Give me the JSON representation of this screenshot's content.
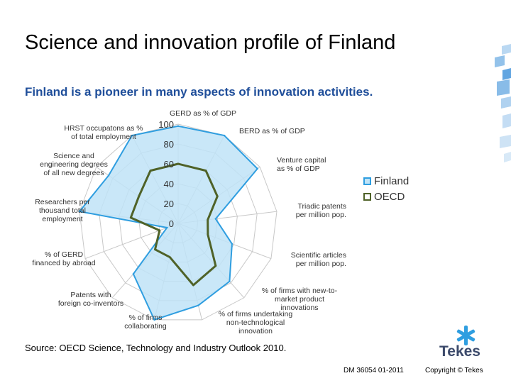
{
  "slide": {
    "title": "Science and innovation profile of Finland",
    "subtitle": "Finland is a pioneer in many aspects of innovation activities.",
    "source": "Source: OECD Science, Technology and Industry Outlook 2010.",
    "doc_number": "DM 36054 01-2011",
    "copyright": "Copyright © Tekes",
    "logo_text": "Tekes"
  },
  "colors": {
    "finland_fill": "#bfe3f7",
    "finland_line": "#2f9ee0",
    "oecd_line": "#4f6228",
    "title_blue": "#1f4e9a",
    "grid": "#c8c8c8",
    "deco_blue": "#3a8fd9"
  },
  "chart_data": {
    "type": "radar",
    "title": "",
    "rlim": [
      0,
      100
    ],
    "tick_values": [
      0,
      20,
      40,
      60,
      80,
      100
    ],
    "tick_labels": [
      "0",
      "20",
      "40",
      "60",
      "80",
      "100"
    ],
    "grid": true,
    "legend_position": "right",
    "axes": [
      "GERD as % of GDP",
      "BERD as % of GDP",
      "Venture capital as % of GDP",
      "Triadic patents per million pop.",
      "Scientific articles per million pop.",
      "% of firms with new-to-market product innovations",
      "% of firms undertaking non-technological innovation",
      "% of firms collaborating",
      "Patents with foreign co-inventors",
      "% of GERD financed by abroad",
      "Researchers per thousand total employment",
      "Science and engineering degrees of all new degrees",
      "HRST occupatons as % of total employment"
    ],
    "series": [
      {
        "name": "Finland",
        "values": [
          98,
          100,
          97,
          38,
          58,
          78,
          85,
          100,
          68,
          12,
          100,
          85,
          100
        ]
      },
      {
        "name": "OECD",
        "values": [
          60,
          60,
          48,
          30,
          32,
          57,
          64,
          35,
          35,
          20,
          48,
          48,
          60
        ]
      }
    ]
  }
}
